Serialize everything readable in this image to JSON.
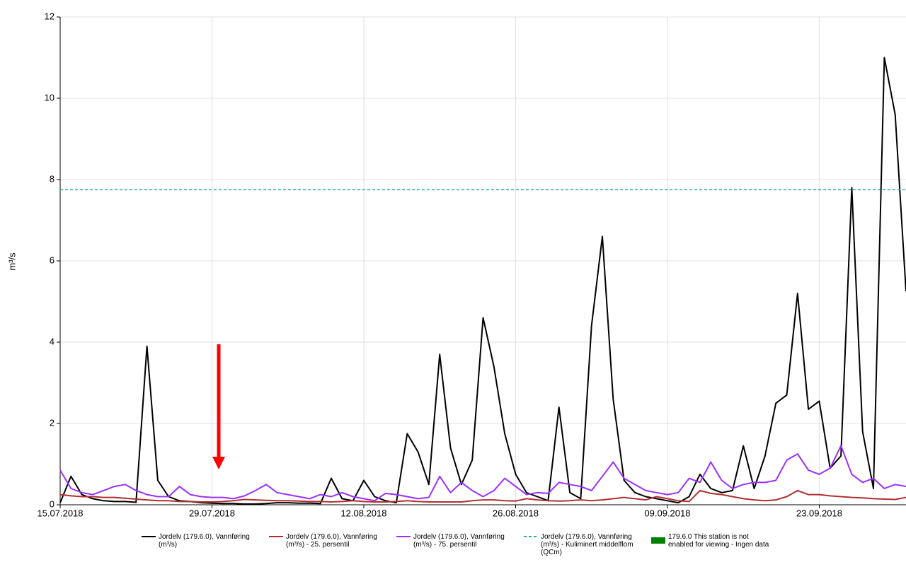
{
  "chart_data": {
    "type": "line",
    "y_label": "m³/s",
    "x": [
      "15.07.2018",
      "16.07.2018",
      "17.07.2018",
      "18.07.2018",
      "19.07.2018",
      "20.07.2018",
      "21.07.2018",
      "22.07.2018",
      "23.07.2018",
      "24.07.2018",
      "25.07.2018",
      "26.07.2018",
      "27.07.2018",
      "28.07.2018",
      "29.07.2018",
      "30.07.2018",
      "31.07.2018",
      "01.08.2018",
      "02.08.2018",
      "03.08.2018",
      "04.08.2018",
      "05.08.2018",
      "06.08.2018",
      "07.08.2018",
      "08.08.2018",
      "09.08.2018",
      "10.08.2018",
      "11.08.2018",
      "12.08.2018",
      "13.08.2018",
      "14.08.2018",
      "15.08.2018",
      "16.08.2018",
      "17.08.2018",
      "18.08.2018",
      "19.08.2018",
      "20.08.2018",
      "21.08.2018",
      "22.08.2018",
      "23.08.2018",
      "24.08.2018",
      "25.08.2018",
      "26.08.2018",
      "27.08.2018",
      "28.08.2018",
      "29.08.2018",
      "30.08.2018",
      "31.08.2018",
      "01.09.2018",
      "02.09.2018",
      "03.09.2018",
      "04.09.2018",
      "05.09.2018",
      "06.09.2018",
      "07.09.2018",
      "08.09.2018",
      "09.09.2018",
      "10.09.2018",
      "11.09.2018",
      "12.09.2018",
      "13.09.2018",
      "14.09.2018",
      "15.09.2018",
      "16.09.2018",
      "17.09.2018",
      "18.09.2018",
      "19.09.2018",
      "20.09.2018",
      "21.09.2018",
      "22.09.2018",
      "23.09.2018",
      "24.09.2018",
      "25.09.2018",
      "26.09.2018",
      "27.09.2018",
      "28.09.2018",
      "29.09.2018",
      "30.09.2018",
      "01.10.2018"
    ],
    "xlim": [
      "15.07.2018",
      "01.10.2018"
    ],
    "xticks": [
      "15.07.2018",
      "29.07.2018",
      "12.08.2018",
      "26.08.2018",
      "09.09.2018",
      "23.09.2018"
    ],
    "ylim": [
      0,
      12
    ],
    "yticks": [
      0,
      2,
      4,
      6,
      8,
      10,
      12
    ],
    "grid": true,
    "series": [
      {
        "name": "Jordelv (179.6.0), Vannføring (m³/s)",
        "color": "#000000",
        "values": [
          0.05,
          0.7,
          0.25,
          0.15,
          0.1,
          0.08,
          0.08,
          0.06,
          3.9,
          0.6,
          0.2,
          0.1,
          0.08,
          0.05,
          0.04,
          0.03,
          0.03,
          0.02,
          0.02,
          0.03,
          0.05,
          0.05,
          0.04,
          0.04,
          0.03,
          0.65,
          0.15,
          0.1,
          0.6,
          0.2,
          0.1,
          0.05,
          1.75,
          1.3,
          0.5,
          3.7,
          1.4,
          0.5,
          1.1,
          4.6,
          3.4,
          1.75,
          0.75,
          0.3,
          0.2,
          0.1,
          2.4,
          0.3,
          0.15,
          4.4,
          6.6,
          2.6,
          0.6,
          0.3,
          0.2,
          0.15,
          0.1,
          0.05,
          0.2,
          0.75,
          0.4,
          0.3,
          0.35,
          1.45,
          0.4,
          1.2,
          2.5,
          2.7,
          5.2,
          2.35,
          2.55,
          0.9,
          1.2,
          7.8,
          1.8,
          0.4,
          11.0,
          9.6,
          5.25
        ]
      },
      {
        "name": "Jordelv (179.6.0), Vannføring (m³/s) - 25. persentil",
        "color": "#b03030",
        "values": [
          0.25,
          0.22,
          0.2,
          0.2,
          0.18,
          0.18,
          0.16,
          0.14,
          0.12,
          0.1,
          0.1,
          0.08,
          0.08,
          0.07,
          0.07,
          0.08,
          0.1,
          0.13,
          0.12,
          0.11,
          0.1,
          0.1,
          0.09,
          0.08,
          0.08,
          0.07,
          0.08,
          0.1,
          0.08,
          0.07,
          0.07,
          0.08,
          0.1,
          0.08,
          0.07,
          0.07,
          0.07,
          0.07,
          0.1,
          0.12,
          0.12,
          0.1,
          0.09,
          0.15,
          0.12,
          0.1,
          0.09,
          0.1,
          0.12,
          0.1,
          0.12,
          0.15,
          0.18,
          0.15,
          0.12,
          0.2,
          0.15,
          0.1,
          0.08,
          0.35,
          0.28,
          0.25,
          0.2,
          0.15,
          0.12,
          0.1,
          0.12,
          0.2,
          0.35,
          0.25,
          0.25,
          0.22,
          0.2,
          0.18,
          0.17,
          0.15,
          0.14,
          0.13,
          0.18
        ]
      },
      {
        "name": "Jordelv (179.6.0), Vannføring (m³/s) - 75. persentil",
        "color": "#9b30ff",
        "values": [
          0.85,
          0.4,
          0.3,
          0.25,
          0.35,
          0.45,
          0.5,
          0.35,
          0.25,
          0.2,
          0.2,
          0.45,
          0.25,
          0.2,
          0.18,
          0.18,
          0.15,
          0.22,
          0.35,
          0.5,
          0.3,
          0.25,
          0.2,
          0.15,
          0.25,
          0.2,
          0.3,
          0.2,
          0.15,
          0.1,
          0.28,
          0.25,
          0.2,
          0.15,
          0.18,
          0.7,
          0.3,
          0.55,
          0.35,
          0.2,
          0.35,
          0.65,
          0.45,
          0.25,
          0.3,
          0.28,
          0.55,
          0.5,
          0.45,
          0.35,
          0.7,
          1.05,
          0.65,
          0.5,
          0.35,
          0.3,
          0.25,
          0.3,
          0.65,
          0.55,
          1.05,
          0.6,
          0.4,
          0.5,
          0.55,
          0.55,
          0.6,
          1.1,
          1.25,
          0.85,
          0.75,
          0.9,
          1.45,
          0.75,
          0.55,
          0.65,
          0.4,
          0.5,
          0.45
        ]
      },
      {
        "name": "Jordelv (179.6.0), Vannføring (m³/s) - Kuliminert middelflom (QCm)",
        "color": "#20b0a0",
        "dash": true,
        "x": [
          "15.07.2018",
          "01.10.2018"
        ],
        "values": [
          7.75,
          7.75
        ]
      }
    ],
    "legend_notes": [
      {
        "name": "179.6.0 This station is not enabled for viewing - Ingen data",
        "color": "#008000"
      }
    ]
  }
}
